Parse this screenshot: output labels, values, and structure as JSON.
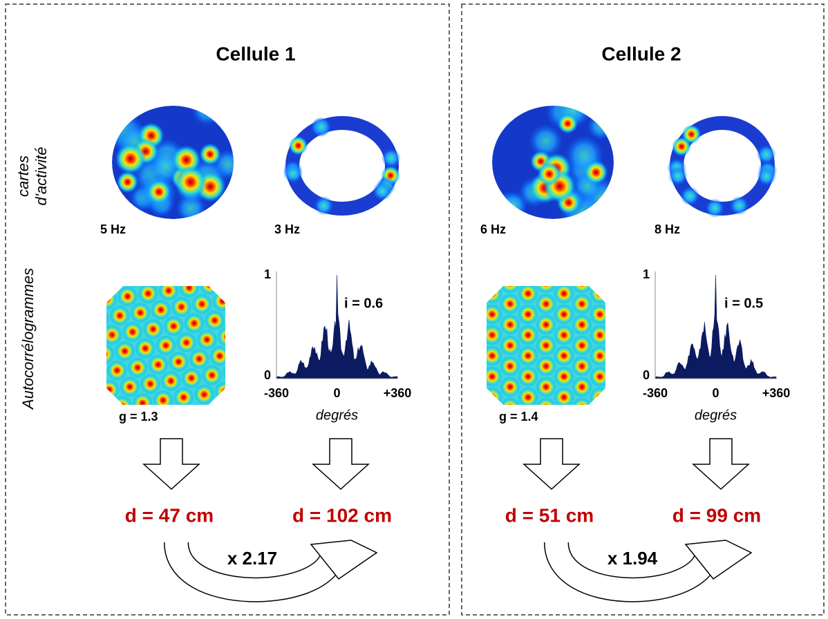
{
  "side_labels": {
    "maps": [
      "cartes",
      "d'activité"
    ],
    "autocorrelograms": "Autocorrélogrammes"
  },
  "panels": [
    {
      "title": "Cellule 1",
      "map_rates": [
        "5 Hz",
        "3 Hz"
      ],
      "gridness": "g = 1.3",
      "index": "i = 0.6",
      "hist_y_ticks": [
        "1",
        "0"
      ],
      "hist_x_ticks": [
        "-360",
        "0",
        "+360"
      ],
      "hist_x_label": "degrés",
      "distances": [
        "d = 47 cm",
        "d = 102 cm"
      ],
      "ratio": "x 2.17"
    },
    {
      "title": "Cellule 2",
      "map_rates": [
        "6 Hz",
        "8 Hz"
      ],
      "gridness": "g = 1.4",
      "index": "i = 0.5",
      "hist_y_ticks": [
        "1",
        "0"
      ],
      "hist_x_ticks": [
        "-360",
        "0",
        "+360"
      ],
      "hist_x_label": "degrés",
      "distances": [
        "d = 51 cm",
        "d = 99 cm"
      ],
      "ratio": "x 1.94"
    }
  ]
}
